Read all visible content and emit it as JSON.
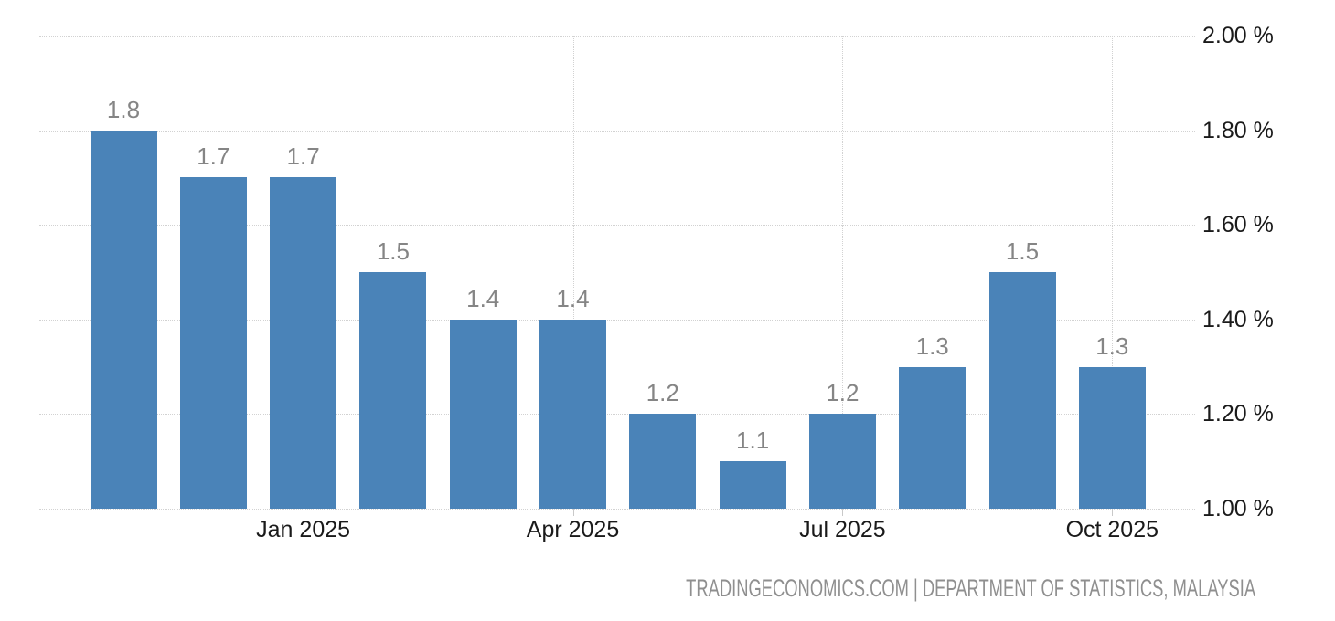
{
  "chart_data": {
    "type": "bar",
    "values": [
      1.8,
      1.7,
      1.7,
      1.5,
      1.4,
      1.4,
      1.2,
      1.1,
      1.2,
      1.3,
      1.5,
      1.3
    ],
    "bar_value_labels": [
      "1.8",
      "1.7",
      "1.7",
      "1.5",
      "1.4",
      "1.4",
      "1.2",
      "1.1",
      "1.2",
      "1.3",
      "1.5",
      "1.3"
    ],
    "x_ticks": [
      {
        "bar_index": 2,
        "label": "Jan 2025"
      },
      {
        "bar_index": 5,
        "label": "Apr 2025"
      },
      {
        "bar_index": 8,
        "label": "Jul 2025"
      },
      {
        "bar_index": 11,
        "label": "Oct 2025"
      }
    ],
    "y_ticks": [
      {
        "value": 2.0,
        "label": "2.00 %"
      },
      {
        "value": 1.8,
        "label": "1.80 %"
      },
      {
        "value": 1.6,
        "label": "1.60 %"
      },
      {
        "value": 1.4,
        "label": "1.40 %"
      },
      {
        "value": 1.2,
        "label": "1.20 %"
      },
      {
        "value": 1.0,
        "label": "1.00 %"
      }
    ],
    "ylim": [
      1.0,
      2.0
    ],
    "grid": true,
    "legend": "none",
    "y_axis_side": "right",
    "bar_color": "#4a83b8",
    "value_label_color": "#858585",
    "axis_text_color": "#1a1a1a",
    "gridline_color": "#d2d2d2"
  },
  "footer": {
    "attribution": "TRADINGECONOMICS.COM | DEPARTMENT OF STATISTICS, MALAYSIA"
  }
}
